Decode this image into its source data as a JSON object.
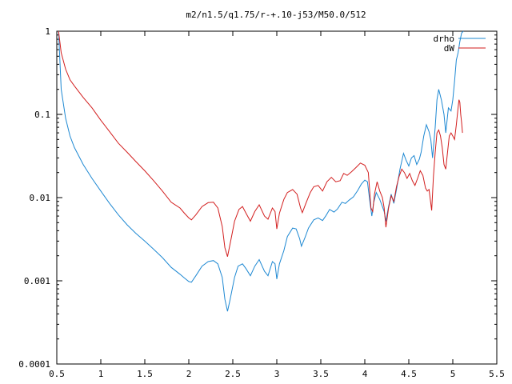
{
  "chart_data": {
    "type": "line",
    "title": "m2/n1.5/q1.75/r-+.10-j53/M50.0/512",
    "xlabel": "",
    "ylabel": "",
    "xlim": [
      0.5,
      5.5
    ],
    "ylim": [
      0.0001,
      1
    ],
    "yscale": "log",
    "grid": false,
    "legend": "top-right",
    "x_ticks": [
      "0.5",
      "1",
      "1.5",
      "2",
      "2.5",
      "3",
      "3.5",
      "4",
      "4.5",
      "5",
      "5.5"
    ],
    "x_tick_values": [
      0.5,
      1,
      1.5,
      2,
      2.5,
      3,
      3.5,
      4,
      4.5,
      5,
      5.5
    ],
    "y_ticks": [
      "0.0001",
      "0.001",
      "0.01",
      "0.1",
      "1"
    ],
    "y_tick_values": [
      0.0001,
      0.001,
      0.01,
      0.1,
      1
    ],
    "series": [
      {
        "name": "drho",
        "color": "#1e88d2",
        "points": [
          [
            0.52,
            1.0
          ],
          [
            0.55,
            0.2
          ],
          [
            0.6,
            0.09
          ],
          [
            0.65,
            0.055
          ],
          [
            0.7,
            0.04
          ],
          [
            0.8,
            0.025
          ],
          [
            0.9,
            0.017
          ],
          [
            1.0,
            0.012
          ],
          [
            1.1,
            0.0085
          ],
          [
            1.2,
            0.0062
          ],
          [
            1.3,
            0.0047
          ],
          [
            1.4,
            0.0037
          ],
          [
            1.5,
            0.003
          ],
          [
            1.6,
            0.0024
          ],
          [
            1.7,
            0.0019
          ],
          [
            1.8,
            0.00145
          ],
          [
            1.9,
            0.0012
          ],
          [
            1.95,
            0.00108
          ],
          [
            2.0,
            0.00098
          ],
          [
            2.03,
            0.00096
          ],
          [
            2.08,
            0.00115
          ],
          [
            2.15,
            0.0015
          ],
          [
            2.22,
            0.0017
          ],
          [
            2.28,
            0.00175
          ],
          [
            2.33,
            0.0016
          ],
          [
            2.38,
            0.0011
          ],
          [
            2.41,
            0.0006
          ],
          [
            2.44,
            0.00043
          ],
          [
            2.47,
            0.0006
          ],
          [
            2.52,
            0.0011
          ],
          [
            2.56,
            0.0015
          ],
          [
            2.61,
            0.0016
          ],
          [
            2.65,
            0.0014
          ],
          [
            2.7,
            0.00115
          ],
          [
            2.75,
            0.0015
          ],
          [
            2.8,
            0.0018
          ],
          [
            2.86,
            0.0013
          ],
          [
            2.9,
            0.00115
          ],
          [
            2.95,
            0.0017
          ],
          [
            2.98,
            0.0016
          ],
          [
            3.0,
            0.00105
          ],
          [
            3.03,
            0.0016
          ],
          [
            3.08,
            0.0023
          ],
          [
            3.12,
            0.0034
          ],
          [
            3.18,
            0.0043
          ],
          [
            3.22,
            0.0042
          ],
          [
            3.26,
            0.0032
          ],
          [
            3.28,
            0.0026
          ],
          [
            3.32,
            0.0033
          ],
          [
            3.36,
            0.0043
          ],
          [
            3.42,
            0.0054
          ],
          [
            3.47,
            0.0057
          ],
          [
            3.52,
            0.0053
          ],
          [
            3.56,
            0.0061
          ],
          [
            3.6,
            0.0072
          ],
          [
            3.65,
            0.0067
          ],
          [
            3.69,
            0.0073
          ],
          [
            3.74,
            0.0088
          ],
          [
            3.78,
            0.0085
          ],
          [
            3.82,
            0.0093
          ],
          [
            3.87,
            0.0102
          ],
          [
            3.92,
            0.0122
          ],
          [
            3.96,
            0.0145
          ],
          [
            4.0,
            0.0162
          ],
          [
            4.03,
            0.0155
          ],
          [
            4.06,
            0.0085
          ],
          [
            4.08,
            0.006
          ],
          [
            4.1,
            0.0086
          ],
          [
            4.13,
            0.0115
          ],
          [
            4.17,
            0.0095
          ],
          [
            4.2,
            0.0078
          ],
          [
            4.22,
            0.0068
          ],
          [
            4.24,
            0.0052
          ],
          [
            4.27,
            0.0078
          ],
          [
            4.3,
            0.011
          ],
          [
            4.33,
            0.0085
          ],
          [
            4.36,
            0.0125
          ],
          [
            4.4,
            0.022
          ],
          [
            4.44,
            0.034
          ],
          [
            4.47,
            0.028
          ],
          [
            4.5,
            0.024
          ],
          [
            4.53,
            0.03
          ],
          [
            4.56,
            0.032
          ],
          [
            4.59,
            0.025
          ],
          [
            4.62,
            0.029
          ],
          [
            4.64,
            0.035
          ],
          [
            4.67,
            0.055
          ],
          [
            4.7,
            0.075
          ],
          [
            4.73,
            0.062
          ],
          [
            4.75,
            0.05
          ],
          [
            4.77,
            0.03
          ],
          [
            4.8,
            0.07
          ],
          [
            4.82,
            0.15
          ],
          [
            4.84,
            0.2
          ],
          [
            4.87,
            0.15
          ],
          [
            4.9,
            0.1
          ],
          [
            4.92,
            0.06
          ],
          [
            4.95,
            0.12
          ],
          [
            4.98,
            0.11
          ],
          [
            5.0,
            0.15
          ],
          [
            5.02,
            0.25
          ],
          [
            5.04,
            0.45
          ],
          [
            5.06,
            0.55
          ],
          [
            5.08,
            0.75
          ],
          [
            5.1,
            0.95
          ],
          [
            5.12,
            1.0
          ]
        ]
      },
      {
        "name": "dW",
        "color": "#d21e1e",
        "points": [
          [
            0.52,
            1.0
          ],
          [
            0.55,
            0.55
          ],
          [
            0.6,
            0.35
          ],
          [
            0.65,
            0.26
          ],
          [
            0.7,
            0.22
          ],
          [
            0.8,
            0.16
          ],
          [
            0.9,
            0.12
          ],
          [
            1.0,
            0.085
          ],
          [
            1.1,
            0.062
          ],
          [
            1.2,
            0.045
          ],
          [
            1.3,
            0.035
          ],
          [
            1.4,
            0.027
          ],
          [
            1.5,
            0.021
          ],
          [
            1.6,
            0.016
          ],
          [
            1.7,
            0.012
          ],
          [
            1.8,
            0.0088
          ],
          [
            1.9,
            0.0075
          ],
          [
            1.95,
            0.0065
          ],
          [
            2.0,
            0.0057
          ],
          [
            2.03,
            0.0054
          ],
          [
            2.08,
            0.0062
          ],
          [
            2.15,
            0.0078
          ],
          [
            2.22,
            0.0087
          ],
          [
            2.28,
            0.0088
          ],
          [
            2.33,
            0.0075
          ],
          [
            2.38,
            0.0045
          ],
          [
            2.41,
            0.0025
          ],
          [
            2.44,
            0.00195
          ],
          [
            2.47,
            0.0028
          ],
          [
            2.52,
            0.0052
          ],
          [
            2.57,
            0.0072
          ],
          [
            2.61,
            0.0078
          ],
          [
            2.65,
            0.0065
          ],
          [
            2.7,
            0.0052
          ],
          [
            2.75,
            0.0068
          ],
          [
            2.8,
            0.0082
          ],
          [
            2.86,
            0.006
          ],
          [
            2.9,
            0.0055
          ],
          [
            2.95,
            0.0075
          ],
          [
            2.98,
            0.0068
          ],
          [
            3.0,
            0.0042
          ],
          [
            3.03,
            0.0065
          ],
          [
            3.08,
            0.0095
          ],
          [
            3.12,
            0.0115
          ],
          [
            3.18,
            0.0125
          ],
          [
            3.23,
            0.011
          ],
          [
            3.27,
            0.0075
          ],
          [
            3.29,
            0.0066
          ],
          [
            3.33,
            0.0085
          ],
          [
            3.38,
            0.0115
          ],
          [
            3.42,
            0.0135
          ],
          [
            3.47,
            0.014
          ],
          [
            3.52,
            0.012
          ],
          [
            3.57,
            0.0155
          ],
          [
            3.62,
            0.0175
          ],
          [
            3.67,
            0.0155
          ],
          [
            3.72,
            0.016
          ],
          [
            3.76,
            0.0195
          ],
          [
            3.8,
            0.0185
          ],
          [
            3.85,
            0.0205
          ],
          [
            3.9,
            0.023
          ],
          [
            3.95,
            0.026
          ],
          [
            4.0,
            0.0245
          ],
          [
            4.04,
            0.02
          ],
          [
            4.07,
            0.0075
          ],
          [
            4.09,
            0.0068
          ],
          [
            4.11,
            0.011
          ],
          [
            4.14,
            0.0155
          ],
          [
            4.17,
            0.012
          ],
          [
            4.2,
            0.01
          ],
          [
            4.22,
            0.0075
          ],
          [
            4.24,
            0.0044
          ],
          [
            4.27,
            0.0075
          ],
          [
            4.3,
            0.0105
          ],
          [
            4.33,
            0.009
          ],
          [
            4.36,
            0.0135
          ],
          [
            4.39,
            0.018
          ],
          [
            4.42,
            0.022
          ],
          [
            4.45,
            0.02
          ],
          [
            4.48,
            0.017
          ],
          [
            4.51,
            0.0195
          ],
          [
            4.54,
            0.016
          ],
          [
            4.57,
            0.014
          ],
          [
            4.6,
            0.017
          ],
          [
            4.63,
            0.021
          ],
          [
            4.66,
            0.0185
          ],
          [
            4.69,
            0.013
          ],
          [
            4.71,
            0.012
          ],
          [
            4.73,
            0.0125
          ],
          [
            4.75,
            0.0085
          ],
          [
            4.76,
            0.007
          ],
          [
            4.78,
            0.018
          ],
          [
            4.8,
            0.035
          ],
          [
            4.82,
            0.06
          ],
          [
            4.84,
            0.065
          ],
          [
            4.86,
            0.055
          ],
          [
            4.88,
            0.04
          ],
          [
            4.9,
            0.025
          ],
          [
            4.92,
            0.022
          ],
          [
            4.94,
            0.035
          ],
          [
            4.96,
            0.055
          ],
          [
            4.98,
            0.06
          ],
          [
            5.0,
            0.055
          ],
          [
            5.02,
            0.05
          ],
          [
            5.04,
            0.075
          ],
          [
            5.06,
            0.12
          ],
          [
            5.07,
            0.15
          ],
          [
            5.08,
            0.14
          ],
          [
            5.09,
            0.1
          ],
          [
            5.1,
            0.08
          ],
          [
            5.11,
            0.06
          ]
        ]
      }
    ]
  }
}
